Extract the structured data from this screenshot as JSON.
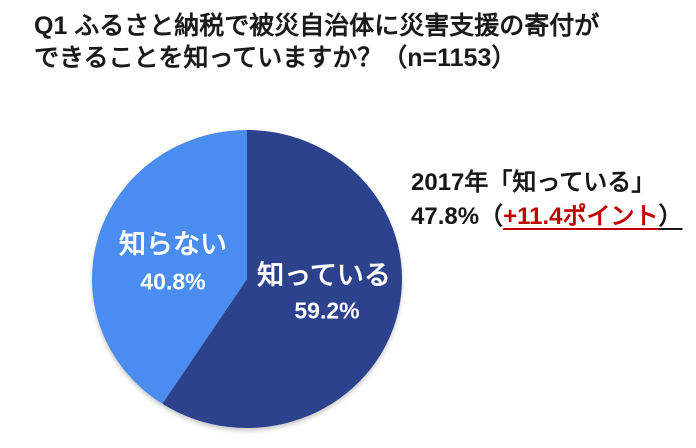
{
  "title": {
    "line1": "Q1 ふるさと納税で被災自治体に災害支援の寄付が",
    "line2": "できることを知っていますか？（n=1153）"
  },
  "chart_data": {
    "type": "pie",
    "title": "Q1 ふるさと納税で被災自治体に災害支援の寄付ができることを知っていますか？（n=1153）",
    "n": 1153,
    "start_angle_deg": 0,
    "direction": "clockwise",
    "slices": [
      {
        "label": "知っている",
        "value": 59.2,
        "pct_text": "59.2%",
        "color": "#2D428C",
        "text_color": "#FFFFFF"
      },
      {
        "label": "知らない",
        "value": 40.8,
        "pct_text": "40.8%",
        "color": "#4B8CF0",
        "text_color": "#FFFFFF"
      }
    ],
    "annotation": {
      "line1": "2017年「知っている」",
      "line2_prefix": "47.8%（",
      "line2_highlight": "+11.4ポイント",
      "line2_suffix": "）",
      "highlight_color": "#C00000",
      "text_color": "#161616"
    }
  }
}
